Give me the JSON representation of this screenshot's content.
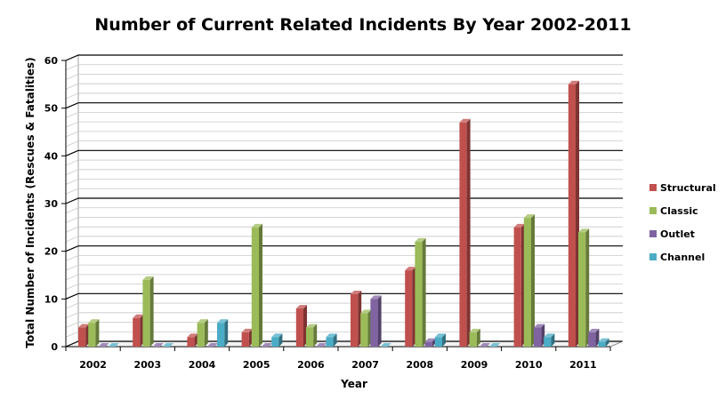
{
  "chart_data": {
    "type": "bar",
    "title": "Number of Current Related Incidents By Year 2002-2011",
    "xlabel": "Year",
    "ylabel": "Total Number of Incidents (Rescues & Fatalities)",
    "ylim": [
      0,
      60
    ],
    "yticks": [
      0,
      10,
      20,
      30,
      40,
      50,
      60
    ],
    "grid": true,
    "legend_position": "right",
    "categories": [
      "2002",
      "2003",
      "2004",
      "2005",
      "2006",
      "2007",
      "2008",
      "2009",
      "2010",
      "2011"
    ],
    "series": [
      {
        "name": "Structural",
        "color": "#c0504d",
        "values": [
          4,
          6,
          2,
          3,
          8,
          11,
          16,
          47,
          25,
          55
        ]
      },
      {
        "name": "Classic",
        "color": "#9bbb59",
        "values": [
          5,
          14,
          5,
          25,
          4,
          7,
          22,
          3,
          27,
          24
        ]
      },
      {
        "name": "Outlet",
        "color": "#8064a2",
        "values": [
          0,
          0,
          0,
          0,
          0,
          10,
          1,
          0,
          4,
          3
        ]
      },
      {
        "name": "Channel",
        "color": "#4bacc6",
        "values": [
          0,
          0,
          5,
          2,
          2,
          0,
          2,
          0,
          2,
          1
        ]
      }
    ]
  }
}
